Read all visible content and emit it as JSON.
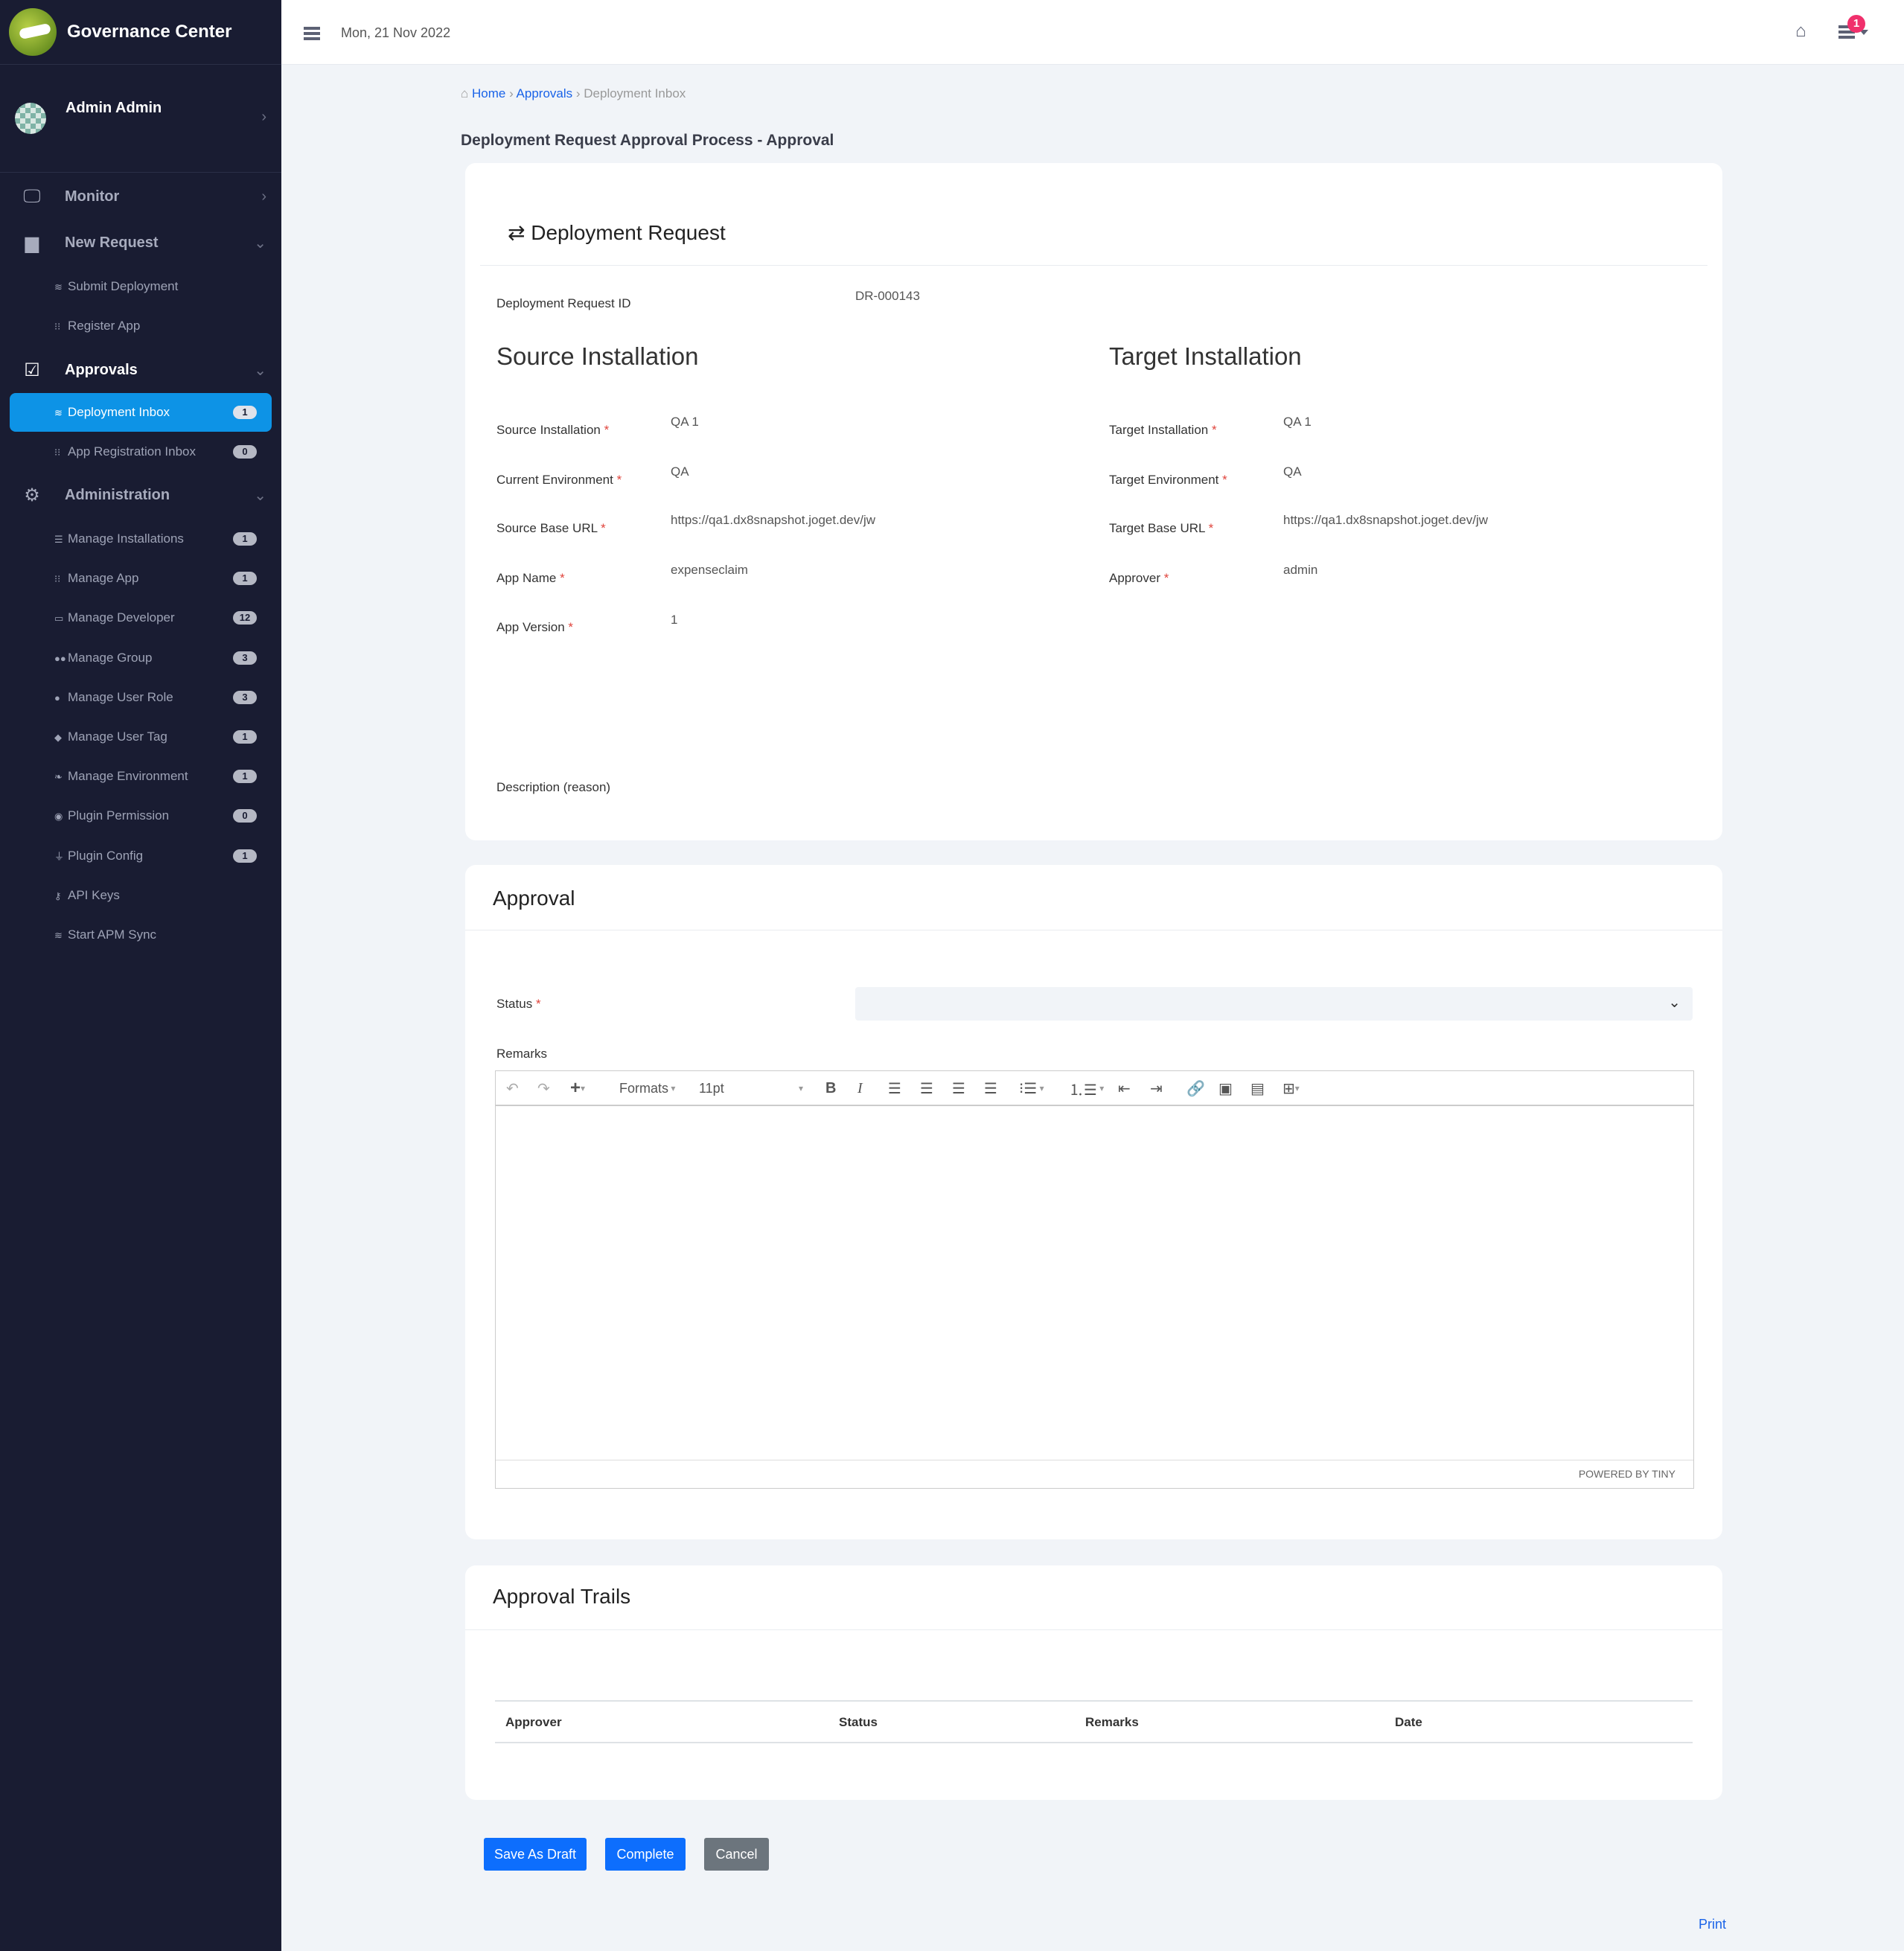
{
  "app": {
    "title": "Governance Center"
  },
  "user": {
    "name": "Admin Admin"
  },
  "sidebar": {
    "monitor": "Monitor",
    "new_request": "New Request",
    "submit_deployment": "Submit Deployment",
    "register_app": "Register App",
    "approvals": "Approvals",
    "administration": "Administration",
    "approval_items": [
      {
        "label": "Deployment Inbox",
        "badge": "1"
      },
      {
        "label": "App Registration Inbox",
        "badge": "0"
      }
    ],
    "admin_items": [
      {
        "label": "Manage Installations",
        "badge": "1",
        "icon": "server-icon"
      },
      {
        "label": "Manage App",
        "badge": "1",
        "icon": "grid-icon"
      },
      {
        "label": "Manage Developer",
        "badge": "12",
        "icon": "id-card-icon"
      },
      {
        "label": "Manage Group",
        "badge": "3",
        "icon": "users-icon"
      },
      {
        "label": "Manage User Role",
        "badge": "3",
        "icon": "user-tie-icon"
      },
      {
        "label": "Manage User Tag",
        "badge": "1",
        "icon": "tag-icon"
      },
      {
        "label": "Manage Environment",
        "badge": "1",
        "icon": "leaf-icon"
      },
      {
        "label": "Plugin Permission",
        "badge": "0",
        "icon": "eye-icon"
      },
      {
        "label": "Plugin Config",
        "badge": "1",
        "icon": "plug-icon"
      },
      {
        "label": "API Keys",
        "badge": null,
        "icon": "key-icon"
      },
      {
        "label": "Start APM Sync",
        "badge": null,
        "icon": "sync-icon"
      }
    ]
  },
  "header": {
    "date": "Mon, 21 Nov 2022",
    "notification_count": "1"
  },
  "breadcrumb": {
    "home": "Home",
    "approvals": "Approvals",
    "current": "Deployment Inbox"
  },
  "page_title": "Deployment Request Approval Process - Approval",
  "request": {
    "heading": "Deployment Request",
    "id_label": "Deployment Request ID",
    "id_value": "DR-000143",
    "source_heading": "Source Installation",
    "target_heading": "Target Installation",
    "source_fields": [
      {
        "label": "Source Installation",
        "value": "QA 1"
      },
      {
        "label": "Current Environment",
        "value": "QA"
      },
      {
        "label": "Source Base URL",
        "value": "https://qa1.dx8snapshot.joget.dev/jw"
      },
      {
        "label": "App Name",
        "value": "expenseclaim"
      },
      {
        "label": "App Version",
        "value": "1"
      }
    ],
    "target_fields": [
      {
        "label": "Target Installation",
        "value": "QA 1"
      },
      {
        "label": "Target Environment",
        "value": "QA"
      },
      {
        "label": "Target Base URL",
        "value": "https://qa1.dx8snapshot.joget.dev/jw"
      },
      {
        "label": "Approver",
        "value": "admin"
      }
    ],
    "description_label": "Description (reason)"
  },
  "approval": {
    "heading": "Approval",
    "status_label": "Status",
    "status_value": "",
    "remarks_label": "Remarks",
    "editor": {
      "formats": "Formats",
      "font_size": "11pt",
      "powered": "POWERED BY TINY"
    }
  },
  "trails": {
    "heading": "Approval Trails",
    "columns": [
      "Approver",
      "Status",
      "Remarks",
      "Date"
    ]
  },
  "actions": {
    "save_draft": "Save As Draft",
    "complete": "Complete",
    "cancel": "Cancel",
    "print": "Print"
  },
  "colors": {
    "sidebar": "#191c32",
    "active": "#0d93e6",
    "primary": "#0d6efd",
    "cancel": "#6c757d",
    "badge": "#f0306c"
  }
}
